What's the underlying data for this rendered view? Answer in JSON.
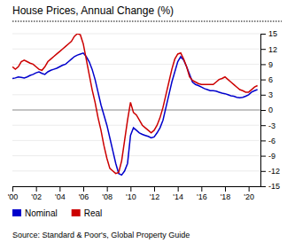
{
  "chart_data": {
    "type": "line",
    "title": "House Prices, Annual Change (%)",
    "source": "Source: Standard & Poor's, Global Property Guide",
    "x": [
      2000.0,
      2000.25,
      2000.5,
      2000.75,
      2001.0,
      2001.25,
      2001.5,
      2001.75,
      2002.0,
      2002.25,
      2002.5,
      2002.75,
      2003.0,
      2003.25,
      2003.5,
      2003.75,
      2004.0,
      2004.25,
      2004.5,
      2004.75,
      2005.0,
      2005.25,
      2005.5,
      2005.75,
      2006.0,
      2006.25,
      2006.5,
      2006.75,
      2007.0,
      2007.25,
      2007.5,
      2007.75,
      2008.0,
      2008.25,
      2008.5,
      2008.75,
      2009.0,
      2009.25,
      2009.5,
      2009.75,
      2010.0,
      2010.25,
      2010.5,
      2010.75,
      2011.0,
      2011.25,
      2011.5,
      2011.75,
      2012.0,
      2012.25,
      2012.5,
      2012.75,
      2013.0,
      2013.25,
      2013.5,
      2013.75,
      2014.0,
      2014.25,
      2014.5,
      2014.75,
      2015.0,
      2015.25,
      2015.5,
      2015.75,
      2016.0,
      2016.25,
      2016.5,
      2016.75,
      2017.0,
      2017.25,
      2017.5,
      2017.75,
      2018.0,
      2018.25,
      2018.5,
      2018.75,
      2019.0,
      2019.25,
      2019.5,
      2019.75,
      2020.0,
      2020.25,
      2020.5,
      2020.75
    ],
    "series": [
      {
        "name": "Nominal",
        "color": "#0000CC",
        "values": [
          6.2,
          6.3,
          6.5,
          6.4,
          6.3,
          6.5,
          6.8,
          7.0,
          7.3,
          7.5,
          7.2,
          7.0,
          7.5,
          7.8,
          8.0,
          8.2,
          8.5,
          8.8,
          9.0,
          9.5,
          10.0,
          10.5,
          10.8,
          11.0,
          11.2,
          10.5,
          9.5,
          8.0,
          6.0,
          3.5,
          1.0,
          -1.0,
          -3.0,
          -5.5,
          -8.0,
          -10.5,
          -12.5,
          -12.8,
          -12.0,
          -10.5,
          -5.0,
          -3.5,
          -4.0,
          -4.5,
          -4.8,
          -5.0,
          -5.2,
          -5.5,
          -5.3,
          -4.5,
          -3.5,
          -2.0,
          0.5,
          3.0,
          5.5,
          7.5,
          9.5,
          10.5,
          9.8,
          8.5,
          7.0,
          5.5,
          5.0,
          4.8,
          4.5,
          4.2,
          4.0,
          3.8,
          3.8,
          3.7,
          3.5,
          3.3,
          3.2,
          3.0,
          2.8,
          2.7,
          2.5,
          2.4,
          2.5,
          2.7,
          3.0,
          3.5,
          3.8,
          4.0
        ]
      },
      {
        "name": "Real",
        "color": "#CC0000",
        "values": [
          8.5,
          8.0,
          8.5,
          9.5,
          9.8,
          9.5,
          9.2,
          9.0,
          8.5,
          8.0,
          7.8,
          8.5,
          9.5,
          10.0,
          10.5,
          11.0,
          11.5,
          12.0,
          12.5,
          13.0,
          13.5,
          14.5,
          15.0,
          14.8,
          13.0,
          10.0,
          7.0,
          4.0,
          1.5,
          -1.5,
          -4.0,
          -7.0,
          -9.5,
          -11.5,
          -12.0,
          -12.5,
          -12.3,
          -10.0,
          -6.0,
          -2.0,
          1.5,
          -0.5,
          -1.0,
          -2.0,
          -3.0,
          -3.5,
          -4.0,
          -4.5,
          -4.0,
          -3.0,
          -1.5,
          0.5,
          3.0,
          5.5,
          8.0,
          10.0,
          11.0,
          11.2,
          10.0,
          8.5,
          6.5,
          5.8,
          5.5,
          5.2,
          5.0,
          5.0,
          5.0,
          5.0,
          5.0,
          5.5,
          6.0,
          6.2,
          6.5,
          6.0,
          5.5,
          5.0,
          4.5,
          4.0,
          3.8,
          3.5,
          3.5,
          4.0,
          4.5,
          4.8
        ]
      }
    ],
    "xlim": [
      2000,
      2021
    ],
    "xticks": [
      {
        "value": 2000,
        "label": "'00"
      },
      {
        "value": 2002,
        "label": "'02"
      },
      {
        "value": 2004,
        "label": "'04"
      },
      {
        "value": 2006,
        "label": "'06"
      },
      {
        "value": 2008,
        "label": "'08"
      },
      {
        "value": 2010,
        "label": "'10"
      },
      {
        "value": 2012,
        "label": "'12"
      },
      {
        "value": 2014,
        "label": "'14"
      },
      {
        "value": 2016,
        "label": "'16"
      },
      {
        "value": 2018,
        "label": "'18"
      },
      {
        "value": 2020,
        "label": "'20"
      }
    ],
    "ylim": [
      -15,
      15
    ],
    "yticks": [
      -15,
      -12,
      -9,
      -6,
      -3,
      0,
      3,
      6,
      9,
      12,
      15
    ],
    "grid": true,
    "legend": "bottom"
  }
}
